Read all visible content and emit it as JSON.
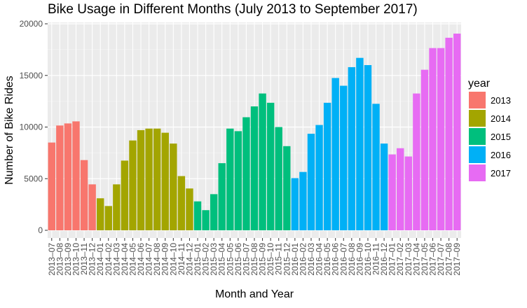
{
  "chart_data": {
    "type": "bar",
    "title": "Bike Usage in Different Months (July 2013 to September 2017)",
    "xlabel": "Month and Year",
    "ylabel": "Number of Bike Rides",
    "ylim": [
      0,
      20000
    ],
    "yticks": [
      0,
      5000,
      10000,
      15000,
      20000
    ],
    "grid": true,
    "legend_placement": "right",
    "legend_title": "year",
    "series": [
      {
        "name": "2013",
        "color": "#F8766D",
        "categories": [
          "2013–07",
          "2013–08",
          "2013–09",
          "2013–10",
          "2013–11",
          "2013–12"
        ],
        "values": [
          8500,
          10150,
          10350,
          10550,
          6800,
          4450
        ]
      },
      {
        "name": "2014",
        "color": "#A3A500",
        "categories": [
          "2014–01",
          "2014–02",
          "2014–03",
          "2014–04",
          "2014–05",
          "2014–06",
          "2014–07",
          "2014–08",
          "2014–09",
          "2014–10",
          "2014–11",
          "2014–12"
        ],
        "values": [
          3100,
          2350,
          4450,
          6750,
          8700,
          9700,
          9850,
          9850,
          9450,
          8400,
          5250,
          4050
        ]
      },
      {
        "name": "2015",
        "color": "#00BF7D",
        "categories": [
          "2015–01",
          "2015–02",
          "2015–03",
          "2015–04",
          "2015–05",
          "2015–06",
          "2015–07",
          "2015–08",
          "2015–09",
          "2015–10",
          "2015–11",
          "2015–12"
        ],
        "values": [
          2800,
          1950,
          3500,
          6500,
          9850,
          9600,
          10950,
          12000,
          13250,
          12350,
          10000,
          8150
        ]
      },
      {
        "name": "2016",
        "color": "#00B0F6",
        "categories": [
          "2016–01",
          "2016–02",
          "2016–03",
          "2016–04",
          "2016–05",
          "2016–06",
          "2016–07",
          "2016–08",
          "2016–09",
          "2016–10",
          "2016–11",
          "2016–12"
        ],
        "values": [
          5050,
          5650,
          9350,
          10200,
          12350,
          14750,
          14000,
          15800,
          16700,
          16000,
          12250,
          8400
        ]
      },
      {
        "name": "2017",
        "color": "#E76BF3",
        "categories": [
          "2017–01",
          "2017–02",
          "2017–03",
          "2017–04",
          "2017–05",
          "2017–06",
          "2017–07",
          "2017–08",
          "2017–09"
        ],
        "values": [
          7350,
          7950,
          7150,
          13250,
          15550,
          17650,
          17650,
          18650,
          19050
        ]
      }
    ]
  }
}
